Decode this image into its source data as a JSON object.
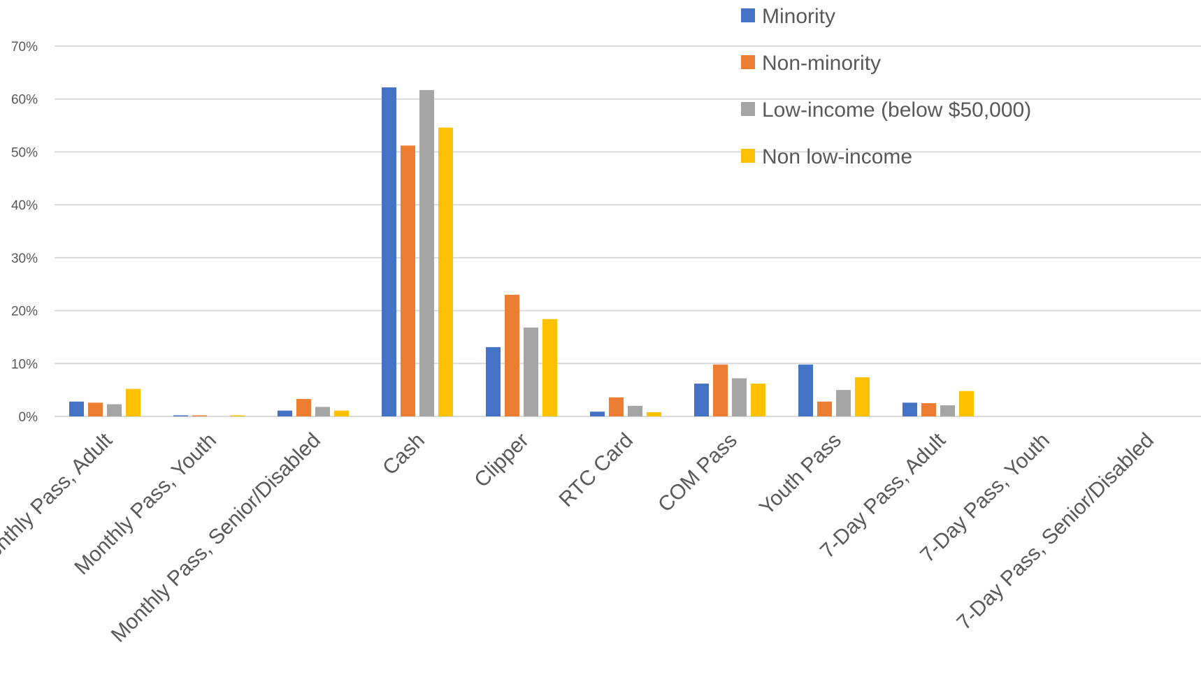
{
  "chart_data": {
    "type": "bar",
    "title": "",
    "xlabel": "",
    "ylabel": "",
    "ylim": [
      0,
      0.7
    ],
    "yticks": [
      0,
      0.1,
      0.2,
      0.3,
      0.4,
      0.5,
      0.6,
      0.7
    ],
    "ytick_labels": [
      "0%",
      "10%",
      "20%",
      "30%",
      "40%",
      "50%",
      "60%",
      "70%"
    ],
    "grid": true,
    "legend_position": "top-right",
    "categories": [
      "Monthly Pass, Adult",
      "Monthly Pass, Youth",
      "Monthly Pass, Senior/Disabled",
      "Cash",
      "Clipper",
      "RTC Card",
      "COM Pass",
      "Youth Pass",
      "7-Day Pass, Adult",
      "7-Day Pass, Youth",
      "7-Day Pass, Senior/Disabled"
    ],
    "series": [
      {
        "name": "Minority",
        "color": "#4472c4",
        "values": [
          0.028,
          0.002,
          0.011,
          0.622,
          0.131,
          0.009,
          0.062,
          0.098,
          0.026,
          0.0,
          0.0
        ]
      },
      {
        "name": "Non-minority",
        "color": "#ed7d31",
        "values": [
          0.026,
          0.002,
          0.033,
          0.512,
          0.23,
          0.036,
          0.098,
          0.028,
          0.025,
          0.0,
          0.0
        ]
      },
      {
        "name": "Low-income (below $50,000)",
        "color": "#a5a5a5",
        "values": [
          0.023,
          0.0,
          0.018,
          0.617,
          0.168,
          0.02,
          0.072,
          0.05,
          0.021,
          0.0,
          0.0
        ]
      },
      {
        "name": "Non low-income",
        "color": "#ffc000",
        "values": [
          0.052,
          0.002,
          0.011,
          0.546,
          0.184,
          0.008,
          0.062,
          0.074,
          0.048,
          0.0,
          0.0
        ]
      }
    ]
  }
}
